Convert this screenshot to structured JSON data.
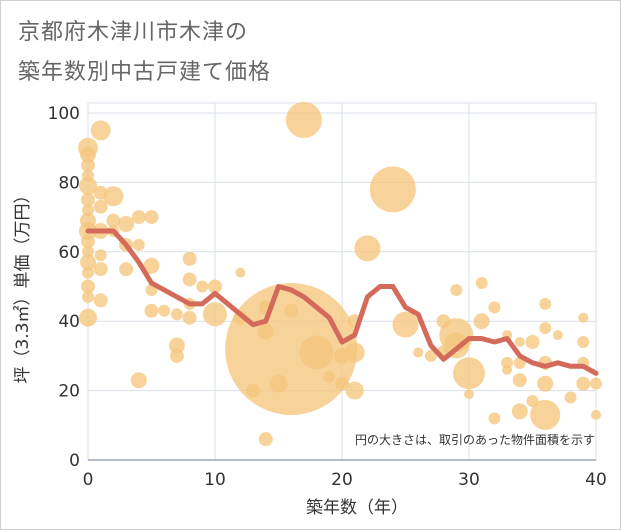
{
  "title_line1": "京都府木津川市木津の",
  "title_line2": "築年数別中古戸建て価格",
  "chart_data": {
    "type": "scatter",
    "xlabel": "築年数（年）",
    "ylabel": "坪（3.3㎡）単価（万円）",
    "xlim": [
      0,
      40
    ],
    "ylim": [
      0,
      100
    ],
    "xticks": [
      0,
      10,
      20,
      30,
      40
    ],
    "yticks": [
      0,
      20,
      40,
      60,
      80,
      100
    ],
    "grid": true,
    "annotation": "円の大きさは、取引のあった物件面積を示す",
    "colors": {
      "bubble": "#f5c77e",
      "line": "#d46a5a",
      "grid": "#d9dfe7"
    },
    "bubbles": [
      {
        "x": 0,
        "y": 90,
        "r": 10
      },
      {
        "x": 0,
        "y": 88,
        "r": 8
      },
      {
        "x": 0,
        "y": 85,
        "r": 7
      },
      {
        "x": 0,
        "y": 82,
        "r": 6
      },
      {
        "x": 0,
        "y": 79,
        "r": 9
      },
      {
        "x": 0,
        "y": 75,
        "r": 7
      },
      {
        "x": 0,
        "y": 72,
        "r": 6
      },
      {
        "x": 0,
        "y": 69,
        "r": 8
      },
      {
        "x": 0,
        "y": 66,
        "r": 9
      },
      {
        "x": 0,
        "y": 63,
        "r": 7
      },
      {
        "x": 0,
        "y": 60,
        "r": 6
      },
      {
        "x": 0,
        "y": 57,
        "r": 8
      },
      {
        "x": 0,
        "y": 54,
        "r": 6
      },
      {
        "x": 0,
        "y": 50,
        "r": 7
      },
      {
        "x": 0,
        "y": 47,
        "r": 6
      },
      {
        "x": 0,
        "y": 41,
        "r": 9
      },
      {
        "x": 1,
        "y": 95,
        "r": 10
      },
      {
        "x": 1,
        "y": 77,
        "r": 7
      },
      {
        "x": 1,
        "y": 73,
        "r": 7
      },
      {
        "x": 1,
        "y": 66,
        "r": 8
      },
      {
        "x": 1,
        "y": 59,
        "r": 6
      },
      {
        "x": 1,
        "y": 55,
        "r": 7
      },
      {
        "x": 1,
        "y": 46,
        "r": 7
      },
      {
        "x": 2,
        "y": 76,
        "r": 10
      },
      {
        "x": 2,
        "y": 69,
        "r": 7
      },
      {
        "x": 2,
        "y": 66,
        "r": 6
      },
      {
        "x": 3,
        "y": 68,
        "r": 8
      },
      {
        "x": 3,
        "y": 62,
        "r": 7
      },
      {
        "x": 3,
        "y": 55,
        "r": 7
      },
      {
        "x": 4,
        "y": 70,
        "r": 7
      },
      {
        "x": 4,
        "y": 62,
        "r": 6
      },
      {
        "x": 4,
        "y": 23,
        "r": 8
      },
      {
        "x": 5,
        "y": 70,
        "r": 7
      },
      {
        "x": 5,
        "y": 56,
        "r": 8
      },
      {
        "x": 5,
        "y": 49,
        "r": 6
      },
      {
        "x": 5,
        "y": 43,
        "r": 7
      },
      {
        "x": 6,
        "y": 43,
        "r": 6
      },
      {
        "x": 7,
        "y": 33,
        "r": 8
      },
      {
        "x": 7,
        "y": 30,
        "r": 7
      },
      {
        "x": 7,
        "y": 42,
        "r": 6
      },
      {
        "x": 8,
        "y": 58,
        "r": 7
      },
      {
        "x": 8,
        "y": 52,
        "r": 7
      },
      {
        "x": 8,
        "y": 45,
        "r": 6
      },
      {
        "x": 8,
        "y": 41,
        "r": 7
      },
      {
        "x": 9,
        "y": 50,
        "r": 6
      },
      {
        "x": 10,
        "y": 50,
        "r": 7
      },
      {
        "x": 10,
        "y": 42,
        "r": 12
      },
      {
        "x": 12,
        "y": 54,
        "r": 5
      },
      {
        "x": 12,
        "y": 41,
        "r": 7
      },
      {
        "x": 13,
        "y": 20,
        "r": 7
      },
      {
        "x": 14,
        "y": 44,
        "r": 7
      },
      {
        "x": 14,
        "y": 37,
        "r": 8
      },
      {
        "x": 14,
        "y": 6,
        "r": 7
      },
      {
        "x": 15,
        "y": 22,
        "r": 9
      },
      {
        "x": 16,
        "y": 32,
        "r": 66
      },
      {
        "x": 16,
        "y": 43,
        "r": 7
      },
      {
        "x": 17,
        "y": 98,
        "r": 18
      },
      {
        "x": 18,
        "y": 31,
        "r": 17
      },
      {
        "x": 19,
        "y": 24,
        "r": 6
      },
      {
        "x": 20,
        "y": 30,
        "r": 8
      },
      {
        "x": 20,
        "y": 22,
        "r": 7
      },
      {
        "x": 21,
        "y": 40,
        "r": 7
      },
      {
        "x": 21,
        "y": 31,
        "r": 10
      },
      {
        "x": 21,
        "y": 20,
        "r": 9
      },
      {
        "x": 22,
        "y": 61,
        "r": 13
      },
      {
        "x": 24,
        "y": 78,
        "r": 23
      },
      {
        "x": 25,
        "y": 39,
        "r": 13
      },
      {
        "x": 26,
        "y": 31,
        "r": 5
      },
      {
        "x": 27,
        "y": 30,
        "r": 6
      },
      {
        "x": 28,
        "y": 40,
        "r": 7
      },
      {
        "x": 28,
        "y": 31,
        "r": 7
      },
      {
        "x": 29,
        "y": 49,
        "r": 6
      },
      {
        "x": 29,
        "y": 36,
        "r": 17
      },
      {
        "x": 29,
        "y": 33,
        "r": 13
      },
      {
        "x": 30,
        "y": 25,
        "r": 16
      },
      {
        "x": 30,
        "y": 19,
        "r": 5
      },
      {
        "x": 31,
        "y": 51,
        "r": 6
      },
      {
        "x": 31,
        "y": 40,
        "r": 8
      },
      {
        "x": 32,
        "y": 44,
        "r": 6
      },
      {
        "x": 32,
        "y": 12,
        "r": 6
      },
      {
        "x": 33,
        "y": 36,
        "r": 5
      },
      {
        "x": 33,
        "y": 28,
        "r": 6
      },
      {
        "x": 33,
        "y": 26,
        "r": 5
      },
      {
        "x": 34,
        "y": 34,
        "r": 5
      },
      {
        "x": 34,
        "y": 28,
        "r": 6
      },
      {
        "x": 34,
        "y": 23,
        "r": 7
      },
      {
        "x": 34,
        "y": 14,
        "r": 8
      },
      {
        "x": 35,
        "y": 34,
        "r": 7
      },
      {
        "x": 35,
        "y": 17,
        "r": 6
      },
      {
        "x": 36,
        "y": 45,
        "r": 6
      },
      {
        "x": 36,
        "y": 38,
        "r": 6
      },
      {
        "x": 36,
        "y": 28,
        "r": 7
      },
      {
        "x": 36,
        "y": 22,
        "r": 8
      },
      {
        "x": 36,
        "y": 13,
        "r": 15
      },
      {
        "x": 37,
        "y": 36,
        "r": 5
      },
      {
        "x": 38,
        "y": 18,
        "r": 6
      },
      {
        "x": 39,
        "y": 41,
        "r": 5
      },
      {
        "x": 39,
        "y": 34,
        "r": 6
      },
      {
        "x": 39,
        "y": 28,
        "r": 6
      },
      {
        "x": 39,
        "y": 22,
        "r": 7
      },
      {
        "x": 40,
        "y": 22,
        "r": 6
      },
      {
        "x": 40,
        "y": 13,
        "r": 5
      }
    ],
    "line": {
      "x": [
        0,
        1,
        2,
        3,
        4,
        5,
        6,
        7,
        8,
        9,
        10,
        11,
        12,
        13,
        14,
        15,
        16,
        17,
        18,
        19,
        20,
        21,
        22,
        23,
        24,
        25,
        26,
        27,
        28,
        29,
        30,
        31,
        32,
        33,
        34,
        35,
        36,
        37,
        38,
        39,
        40
      ],
      "y": [
        66,
        66,
        66,
        62,
        57,
        51,
        49,
        47,
        45,
        45,
        48,
        45,
        42,
        39,
        40,
        50,
        49,
        47,
        44,
        41,
        34,
        36,
        47,
        50,
        50,
        44,
        42,
        33,
        29,
        32,
        35,
        35,
        34,
        35,
        30,
        28,
        27,
        28,
        27,
        27,
        25
      ]
    }
  }
}
